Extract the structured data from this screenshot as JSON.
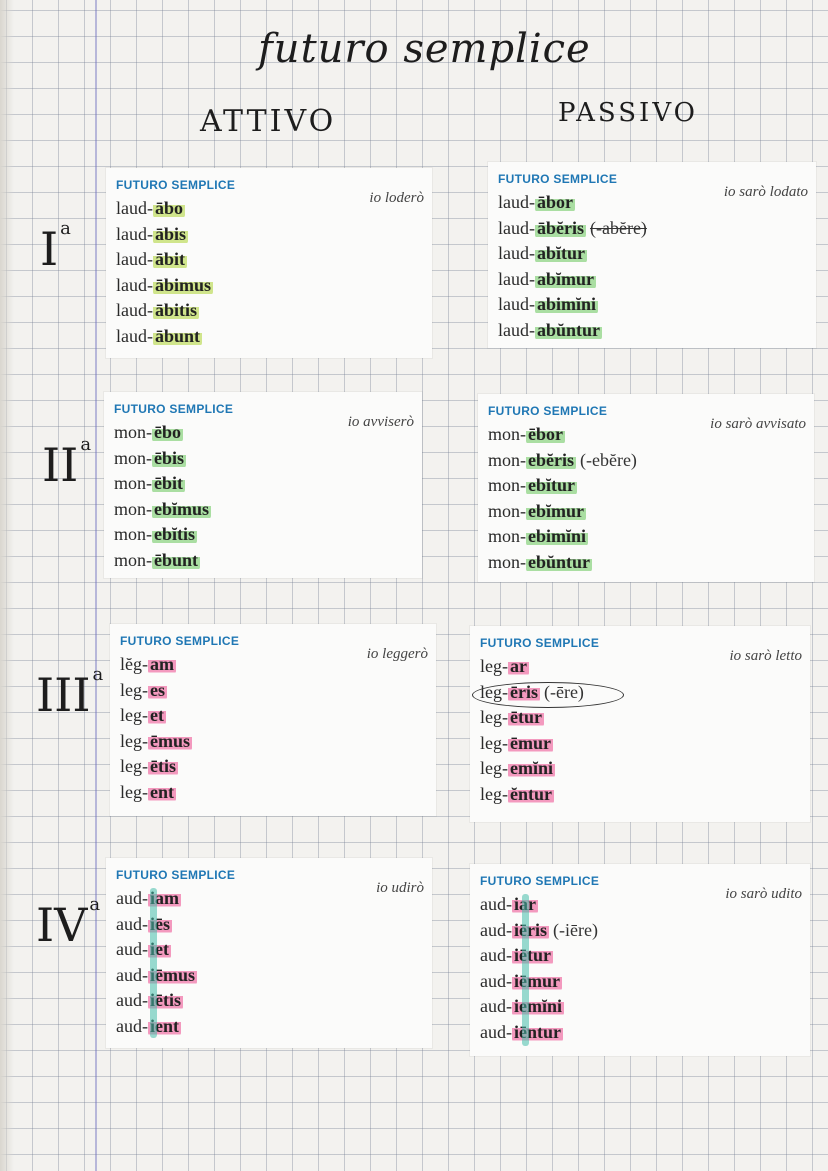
{
  "title": "futuro semplice",
  "columns": {
    "active": "ATTIVO",
    "passive": "PASSIVO"
  },
  "sections": [
    {
      "numeral": "I",
      "ord": "a",
      "active": {
        "heading": "FUTURO SEMPLICE",
        "translation": "io loderò",
        "rows": [
          {
            "stem": "laud-",
            "end": "ābo",
            "extra": ""
          },
          {
            "stem": "laud-",
            "end": "ābis",
            "extra": ""
          },
          {
            "stem": "laud-",
            "end": "ābit",
            "extra": ""
          },
          {
            "stem": "laud-",
            "end": "ābimus",
            "extra": ""
          },
          {
            "stem": "laud-",
            "end": "ābitis",
            "extra": ""
          },
          {
            "stem": "laud-",
            "end": "ābunt",
            "extra": ""
          }
        ]
      },
      "passive": {
        "heading": "FUTURO SEMPLICE",
        "translation": "io sarò lodato",
        "rows": [
          {
            "stem": "laud-",
            "end": "ābor",
            "extra": ""
          },
          {
            "stem": "laud-",
            "end": "ābĕris",
            "extra": "(-abĕre)"
          },
          {
            "stem": "laud-",
            "end": "abĭtur",
            "extra": ""
          },
          {
            "stem": "laud-",
            "end": "abĭmur",
            "extra": ""
          },
          {
            "stem": "laud-",
            "end": "abimĭni",
            "extra": ""
          },
          {
            "stem": "laud-",
            "end": "abŭntur",
            "extra": ""
          }
        ]
      }
    },
    {
      "numeral": "II",
      "ord": "a",
      "active": {
        "heading": "FUTURO SEMPLICE",
        "translation": "io avviserò",
        "rows": [
          {
            "stem": "mon-",
            "end": "ēbo",
            "extra": ""
          },
          {
            "stem": "mon-",
            "end": "ēbis",
            "extra": ""
          },
          {
            "stem": "mon-",
            "end": "ēbit",
            "extra": ""
          },
          {
            "stem": "mon-",
            "end": "ebĭmus",
            "extra": ""
          },
          {
            "stem": "mon-",
            "end": "ebĭtis",
            "extra": ""
          },
          {
            "stem": "mon-",
            "end": "ēbunt",
            "extra": ""
          }
        ]
      },
      "passive": {
        "heading": "FUTURO SEMPLICE",
        "translation": "io sarò avvisato",
        "rows": [
          {
            "stem": "mon-",
            "end": "ēbor",
            "extra": ""
          },
          {
            "stem": "mon-",
            "end": "ebĕris",
            "extra": "(-ebĕre)"
          },
          {
            "stem": "mon-",
            "end": "ebĭtur",
            "extra": ""
          },
          {
            "stem": "mon-",
            "end": "ebĭmur",
            "extra": ""
          },
          {
            "stem": "mon-",
            "end": "ebimĭni",
            "extra": ""
          },
          {
            "stem": "mon-",
            "end": "ebŭntur",
            "extra": ""
          }
        ]
      }
    },
    {
      "numeral": "III",
      "ord": "a",
      "active": {
        "heading": "FUTURO SEMPLICE",
        "translation": "io leggerò",
        "rows": [
          {
            "stem": "lĕg-",
            "end": "am",
            "extra": ""
          },
          {
            "stem": "leg-",
            "end": "es",
            "extra": ""
          },
          {
            "stem": "leg-",
            "end": "et",
            "extra": ""
          },
          {
            "stem": "leg-",
            "end": "ēmus",
            "extra": ""
          },
          {
            "stem": "leg-",
            "end": "ētis",
            "extra": ""
          },
          {
            "stem": "leg-",
            "end": "ent",
            "extra": ""
          }
        ]
      },
      "passive": {
        "heading": "FUTURO SEMPLICE",
        "translation": "io sarò letto",
        "rows": [
          {
            "stem": "leg-",
            "end": "ar",
            "extra": ""
          },
          {
            "stem": "leg-",
            "end": "ēris",
            "extra": "(-ēre)"
          },
          {
            "stem": "leg-",
            "end": "ētur",
            "extra": ""
          },
          {
            "stem": "leg-",
            "end": "ēmur",
            "extra": ""
          },
          {
            "stem": "leg-",
            "end": "emĭni",
            "extra": ""
          },
          {
            "stem": "leg-",
            "end": "ĕntur",
            "extra": ""
          }
        ]
      }
    },
    {
      "numeral": "IV",
      "ord": "a",
      "active": {
        "heading": "FUTURO SEMPLICE",
        "translation": "io udirò",
        "rows": [
          {
            "stem": "aud-",
            "end": "iam",
            "extra": ""
          },
          {
            "stem": "aud-",
            "end": "iēs",
            "extra": ""
          },
          {
            "stem": "aud-",
            "end": "iet",
            "extra": ""
          },
          {
            "stem": "aud-",
            "end": "iēmus",
            "extra": ""
          },
          {
            "stem": "aud-",
            "end": "iētis",
            "extra": ""
          },
          {
            "stem": "aud-",
            "end": "ient",
            "extra": ""
          }
        ]
      },
      "passive": {
        "heading": "FUTURO SEMPLICE",
        "translation": "io sarò udito",
        "rows": [
          {
            "stem": "aud-",
            "end": "iar",
            "extra": ""
          },
          {
            "stem": "aud-",
            "end": "iēris",
            "extra": "(-iēre)"
          },
          {
            "stem": "aud-",
            "end": "iētur",
            "extra": ""
          },
          {
            "stem": "aud-",
            "end": "iēmur",
            "extra": ""
          },
          {
            "stem": "aud-",
            "end": "iemĭni",
            "extra": ""
          },
          {
            "stem": "aud-",
            "end": "iēntur",
            "extra": ""
          }
        ]
      }
    }
  ],
  "colors": {
    "heading": "#1f77b4",
    "highlight_yellow": "#c8e178",
    "highlight_green": "#96d78c",
    "highlight_pink": "#f078aa",
    "highlight_teal": "#46beaa"
  }
}
